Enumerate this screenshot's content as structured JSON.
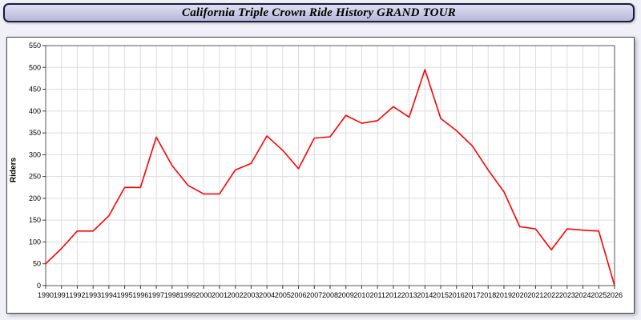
{
  "title": "California Triple Crown Ride History GRAND TOUR",
  "colors": {
    "page_bg": "#f0f0f8",
    "title_bar_top": "#dfdff2",
    "title_bar_bottom": "#b7b7d9",
    "title_border": "#1c1c3c",
    "panel_bg": "#ffffff",
    "panel_border": "#444455",
    "grid": "#dcdcdc",
    "axis": "#555555",
    "tick": "#333333",
    "line": "#ff0000",
    "text": "#000000"
  },
  "chart_data": {
    "type": "line",
    "title": "California Triple Crown Ride History GRAND TOUR",
    "xlabel": "",
    "ylabel": "Riders",
    "ylim": [
      0,
      550
    ],
    "ytick_step": 50,
    "grid": true,
    "legend": "none",
    "x": [
      1990,
      1991,
      1992,
      1993,
      1994,
      1995,
      1996,
      1997,
      1998,
      1999,
      2000,
      2001,
      2002,
      2003,
      2004,
      2005,
      2006,
      2007,
      2008,
      2009,
      2010,
      2011,
      2012,
      2013,
      2014,
      2015,
      2016,
      2017,
      2018,
      2019,
      2020,
      2021,
      2022,
      2023,
      2024,
      2025,
      2026
    ],
    "series": [
      {
        "name": "Riders",
        "color": "#ff0000",
        "values": [
          50,
          85,
          125,
          125,
          160,
          225,
          225,
          340,
          275,
          230,
          210,
          210,
          265,
          280,
          343,
          310,
          268,
          338,
          341,
          390,
          372,
          378,
          410,
          386,
          495,
          383,
          355,
          320,
          265,
          215,
          135,
          130,
          82,
          130,
          127,
          125,
          0
        ]
      }
    ]
  }
}
